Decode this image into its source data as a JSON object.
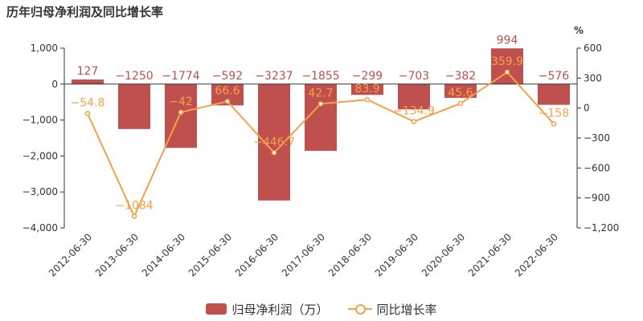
{
  "chart_data": {
    "type": "bar",
    "title": "历年归母净利润及同比增长率",
    "categories": [
      "2012-06-30",
      "2013-06-30",
      "2014-06-30",
      "2015-06-30",
      "2016-06-30",
      "2017-06-30",
      "2018-06-30",
      "2019-06-30",
      "2020-06-30",
      "2021-06-30",
      "2022-06-30"
    ],
    "series": [
      {
        "name": "归母净利润（万）",
        "type": "bar",
        "axis": "left",
        "values": [
          127,
          -1250,
          -1774,
          -592,
          -3237,
          -1855,
          -299,
          -703,
          -382,
          994,
          -576
        ],
        "labels": [
          "127",
          "−1250",
          "−1774",
          "−592",
          "−3237",
          "−1855",
          "−299",
          "−703",
          "−382",
          "994",
          "−576"
        ]
      },
      {
        "name": "同比增长率",
        "type": "line",
        "axis": "right",
        "values": [
          -54.8,
          -1084,
          -42,
          66.6,
          -446.7,
          42.7,
          83.9,
          -134.9,
          45.6,
          359.9,
          -158
        ],
        "labels": [
          "−54.8",
          "−1084",
          "−42",
          "66.6",
          "−446.7",
          "42.7",
          "83.9",
          "−134.9",
          "45.6",
          "359.9",
          "−158"
        ]
      }
    ],
    "y_left": {
      "min": -4000,
      "max": 1000,
      "ticks": [
        1000,
        0,
        -1000,
        -2000,
        -3000,
        -4000
      ],
      "tick_labels": [
        "1,000",
        "0",
        "−1,000",
        "−2,000",
        "−3,000",
        "−4,000"
      ]
    },
    "y_right": {
      "min": -1200,
      "max": 600,
      "unit": "%",
      "ticks": [
        600,
        300,
        0,
        -300,
        -600,
        -900,
        -1200
      ],
      "tick_labels": [
        "600",
        "300",
        "0",
        "−300",
        "−600",
        "−900",
        "−1,200"
      ]
    },
    "grid": false,
    "legend_position": "bottom-center",
    "colors": {
      "bar": "#c0504d",
      "bar_label": "#c0504d",
      "line": "#f5a04a",
      "axis": "#333333"
    }
  }
}
